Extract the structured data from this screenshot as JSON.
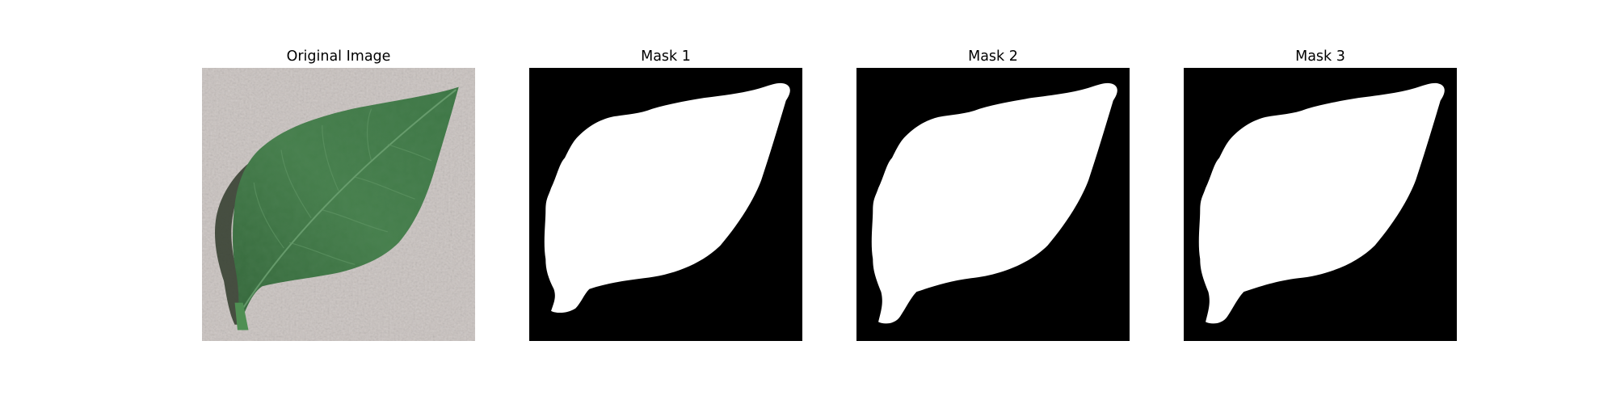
{
  "panels": [
    {
      "title": "Original Image",
      "icon": "leaf-photo"
    },
    {
      "title": "Mask 1",
      "icon": "leaf-mask"
    },
    {
      "title": "Mask 2",
      "icon": "leaf-mask"
    },
    {
      "title": "Mask 3",
      "icon": "leaf-mask"
    }
  ],
  "colors": {
    "background_paper": "#c9c2bf",
    "leaf_green": "#3f7a48",
    "leaf_shadow": "#2f3a2a",
    "mask_fg": "#ffffff",
    "mask_bg": "#000000"
  }
}
